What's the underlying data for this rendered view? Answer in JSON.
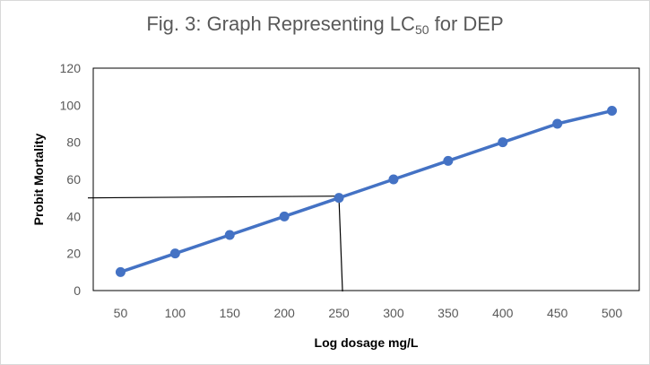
{
  "chart_data": {
    "type": "line",
    "title_main": "Fig. 3: Graph Representing LC",
    "title_sub": "50",
    "title_tail": " for DEP",
    "xlabel": "Log dosage mg/L",
    "ylabel": "Probit Mortality",
    "categories": [
      "50",
      "100",
      "150",
      "200",
      "250",
      "300",
      "350",
      "400",
      "450",
      "500"
    ],
    "series": [
      {
        "values": [
          10,
          20,
          30,
          40,
          50,
          60,
          70,
          80,
          90,
          97
        ]
      }
    ],
    "ylim": [
      0,
      120
    ],
    "yticks": [
      "0",
      "20",
      "40",
      "60",
      "80",
      "100",
      "120"
    ],
    "reference": {
      "x_category": "250",
      "y": 50
    },
    "grid": false,
    "legend": "none",
    "colors": {
      "series": "#4472c4",
      "reference": "#000000",
      "axis": "#000000"
    }
  }
}
